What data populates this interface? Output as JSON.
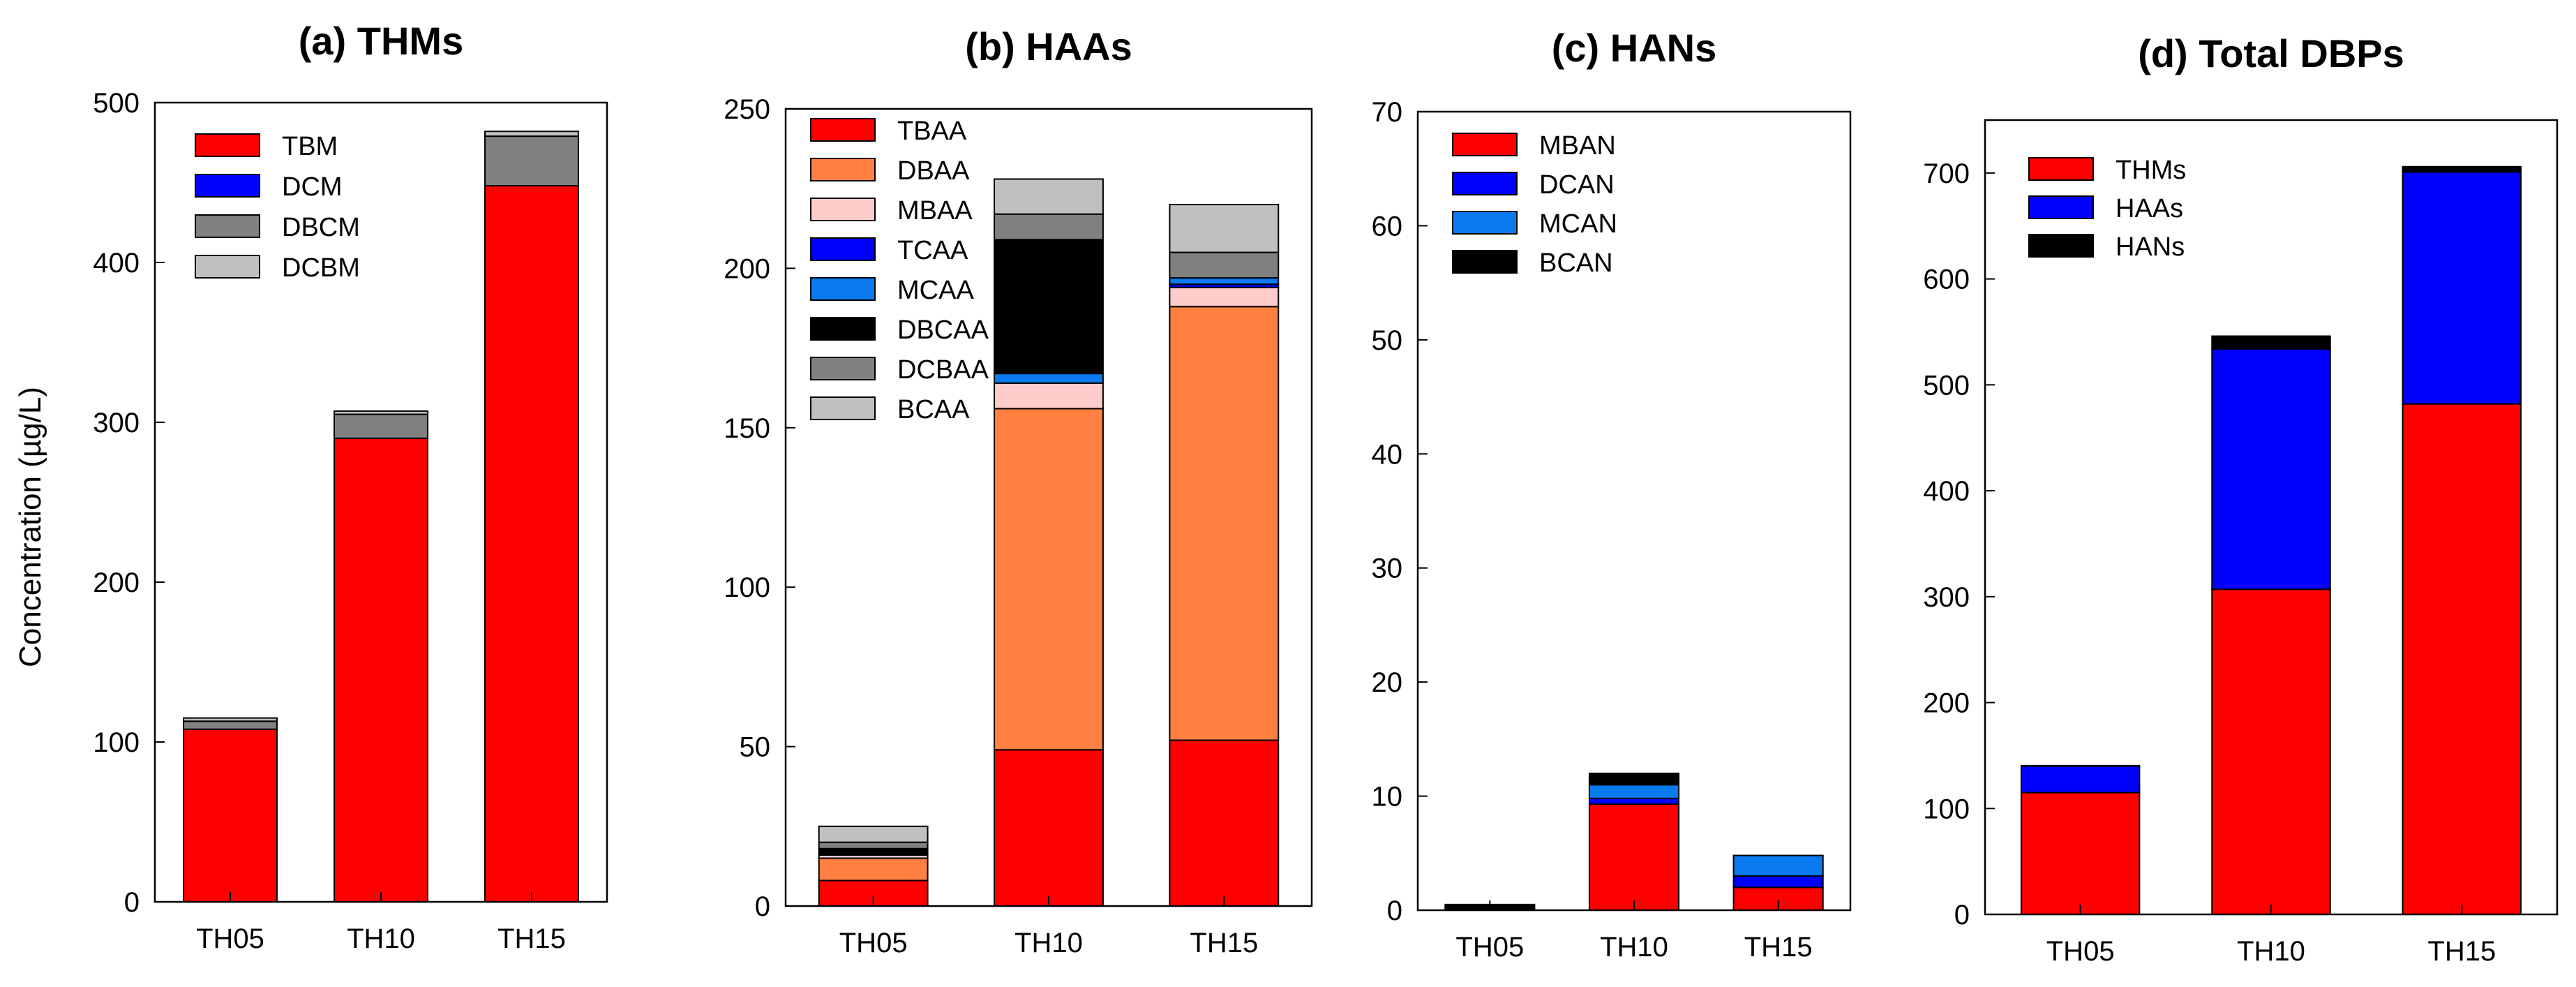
{
  "figure": {
    "ylabel": "Concentration (µg/L)"
  },
  "colors": {
    "red": "#FF0000",
    "orange": "#FF8040",
    "pink": "#FFCCCC",
    "blue": "#0000FF",
    "lightblue": "#0A7AF0",
    "black": "#000000",
    "darkgray": "#808080",
    "lightgray": "#C0C0C0"
  },
  "chart_data": [
    {
      "type": "bar",
      "stacked": true,
      "title": "(a) THMs",
      "categories": [
        "TH05",
        "TH10",
        "TH15"
      ],
      "ylim": [
        0,
        500
      ],
      "yticks": [
        0,
        100,
        200,
        300,
        400,
        500
      ],
      "xlabel": "",
      "ylabel": "Concentration (µg/L)",
      "legend": "top-left",
      "series": [
        {
          "name": "TBM",
          "color": "#FF0000",
          "values": [
            108,
            290,
            448
          ]
        },
        {
          "name": "DCM",
          "color": "#0000FF",
          "values": [
            0,
            0,
            0
          ]
        },
        {
          "name": "DBCM",
          "color": "#808080",
          "values": [
            5,
            15,
            31
          ]
        },
        {
          "name": "DCBM",
          "color": "#C0C0C0",
          "values": [
            2,
            2,
            3
          ]
        }
      ]
    },
    {
      "type": "bar",
      "stacked": true,
      "title": "(b) HAAs",
      "categories": [
        "TH05",
        "TH10",
        "TH15"
      ],
      "ylim": [
        0,
        250
      ],
      "yticks": [
        0,
        50,
        100,
        150,
        200,
        250
      ],
      "xlabel": "",
      "ylabel": "",
      "legend": "top-left",
      "series": [
        {
          "name": "TBAA",
          "color": "#FF0000",
          "values": [
            8,
            49,
            52
          ]
        },
        {
          "name": "DBAA",
          "color": "#FF8040",
          "values": [
            7,
            107,
            136
          ]
        },
        {
          "name": "MBAA",
          "color": "#FFCCCC",
          "values": [
            1,
            8,
            6
          ]
        },
        {
          "name": "TCAA",
          "color": "#0000FF",
          "values": [
            0,
            0,
            1
          ]
        },
        {
          "name": "MCAA",
          "color": "#0A7AF0",
          "values": [
            0,
            3,
            2
          ]
        },
        {
          "name": "DBCAA",
          "color": "#000000",
          "values": [
            2,
            42,
            0
          ]
        },
        {
          "name": "DCBAA",
          "color": "#808080",
          "values": [
            2,
            8,
            8
          ]
        },
        {
          "name": "BCAA",
          "color": "#C0C0C0",
          "values": [
            5,
            11,
            15
          ]
        }
      ]
    },
    {
      "type": "bar",
      "stacked": true,
      "title": "(c) HANs",
      "categories": [
        "TH05",
        "TH10",
        "TH15"
      ],
      "ylim": [
        0,
        70
      ],
      "yticks": [
        0,
        10,
        20,
        30,
        40,
        50,
        60,
        70
      ],
      "xlabel": "",
      "ylabel": "",
      "legend": "top-left",
      "series": [
        {
          "name": "MBAN",
          "color": "#FF0000",
          "values": [
            0,
            9.3,
            2
          ]
        },
        {
          "name": "DCAN",
          "color": "#0000FF",
          "values": [
            0,
            0.5,
            1
          ]
        },
        {
          "name": "MCAN",
          "color": "#0A7AF0",
          "values": [
            0,
            1.2,
            1.8
          ]
        },
        {
          "name": "BCAN",
          "color": "#000000",
          "values": [
            0.5,
            1,
            0
          ]
        }
      ]
    },
    {
      "type": "bar",
      "stacked": true,
      "title": "(d) Total DBPs",
      "categories": [
        "TH05",
        "TH10",
        "TH15"
      ],
      "ylim": [
        0,
        750
      ],
      "yticks": [
        0,
        100,
        200,
        300,
        400,
        500,
        600,
        700
      ],
      "xlabel": "",
      "ylabel": "",
      "legend": "top-left",
      "series": [
        {
          "name": "THMs",
          "color": "#FF0000",
          "values": [
            115,
            307,
            482
          ]
        },
        {
          "name": "HAAs",
          "color": "#0000FF",
          "values": [
            25,
            227,
            219
          ]
        },
        {
          "name": "HANs",
          "color": "#000000",
          "values": [
            0.5,
            12,
            5
          ]
        }
      ]
    }
  ]
}
